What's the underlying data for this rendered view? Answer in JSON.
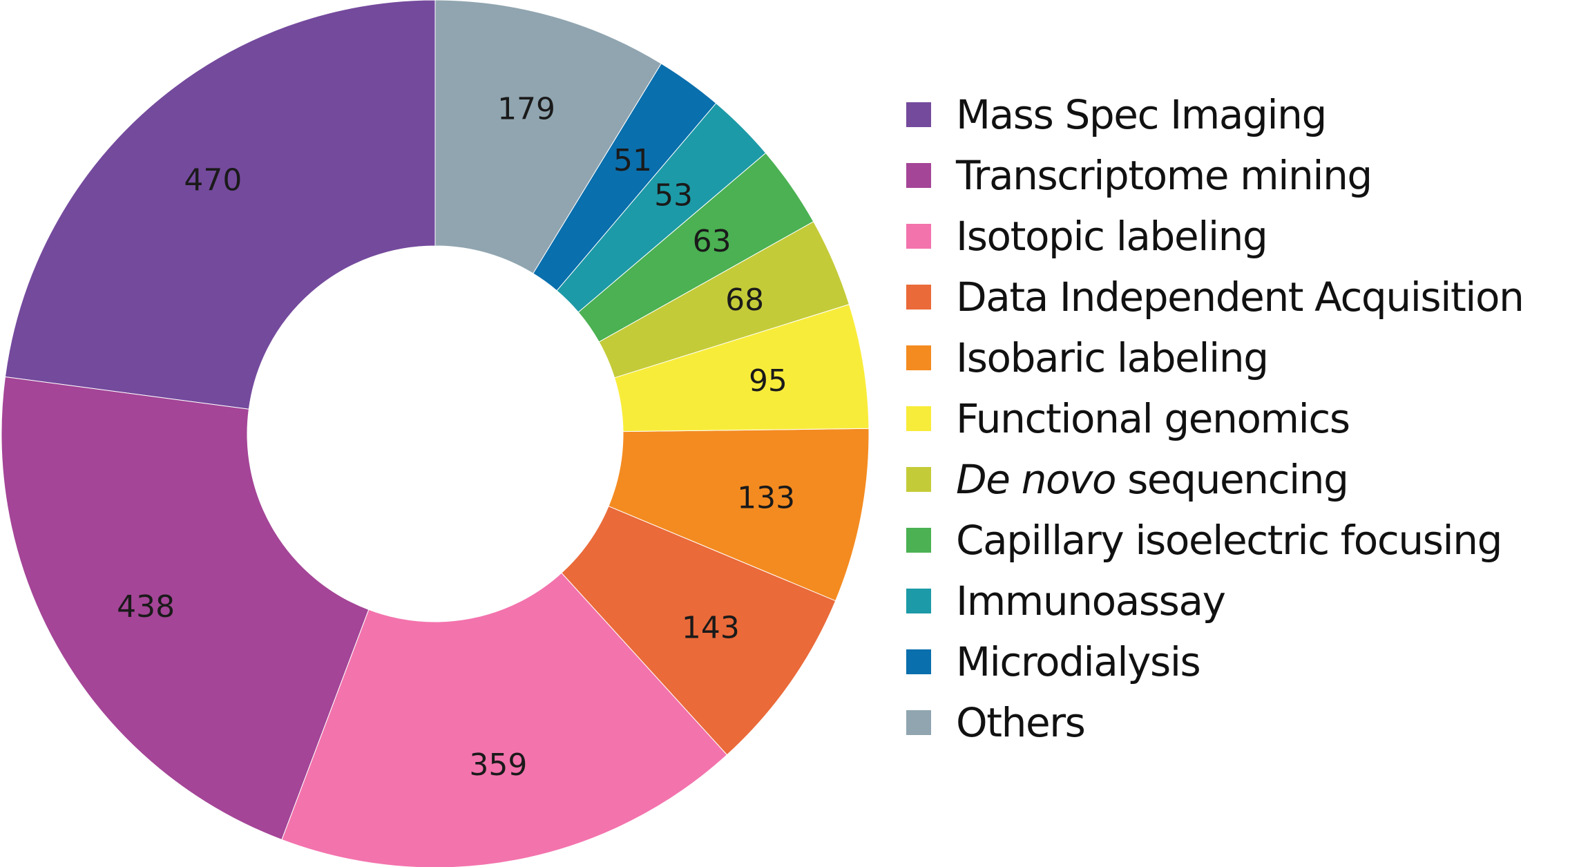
{
  "chart_data": {
    "type": "pie",
    "donut": true,
    "start_angle_deg": 0,
    "direction": "counterclockwise",
    "legend_position": "right",
    "slices": [
      {
        "label": "Mass Spec Imaging",
        "value": 470,
        "color": "#744a9d"
      },
      {
        "label": "Transcriptome mining",
        "value": 438,
        "color": "#a44597"
      },
      {
        "label": "Isotopic labeling",
        "value": 359,
        "color": "#f373ad"
      },
      {
        "label": "Data Independent Acquisition",
        "value": 143,
        "color": "#ea6a39"
      },
      {
        "label": "Isobaric labeling",
        "value": 133,
        "color": "#f48b20"
      },
      {
        "label": "Functional genomics",
        "value": 95,
        "color": "#f8ec3a"
      },
      {
        "label_italic": "De novo",
        "label_rest": " sequencing",
        "value": 68,
        "color": "#c4cb38"
      },
      {
        "label": "Capillary isoelectric focusing",
        "value": 63,
        "color": "#4bb152"
      },
      {
        "label": "Immunoassay",
        "value": 53,
        "color": "#1d9aa7"
      },
      {
        "label": "Microdialysis",
        "value": 51,
        "color": "#0a6fad"
      },
      {
        "label": "Others",
        "value": 179,
        "color": "#90a5b0"
      }
    ]
  }
}
